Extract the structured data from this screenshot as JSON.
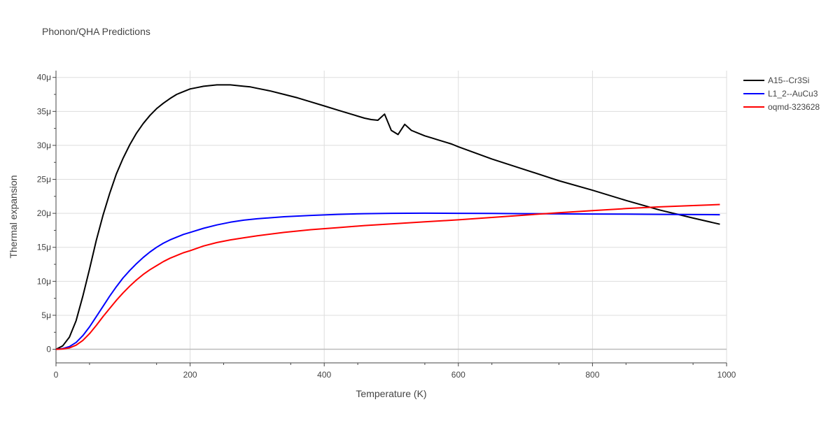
{
  "chart_data": {
    "type": "line",
    "title": "Phonon/QHA Predictions",
    "xlabel": "Temperature (K)",
    "ylabel": "Thermal expansion",
    "xlim": [
      0,
      1000
    ],
    "ylim": [
      -2,
      41
    ],
    "x_ticks": [
      0,
      200,
      400,
      600,
      800,
      1000
    ],
    "x_tick_labels": [
      "0",
      "200",
      "400",
      "600",
      "800",
      "1000"
    ],
    "y_ticks": [
      0,
      5,
      10,
      15,
      20,
      25,
      30,
      35,
      40
    ],
    "y_tick_labels": [
      "0",
      "5μ",
      "10μ",
      "15μ",
      "20μ",
      "25μ",
      "30μ",
      "35μ",
      "40μ"
    ],
    "grid": true,
    "legend_position": "top-right",
    "series": [
      {
        "name": "A15--Cr3Si",
        "color": "#000000",
        "x": [
          0,
          10,
          20,
          30,
          40,
          50,
          60,
          70,
          80,
          90,
          100,
          110,
          120,
          130,
          140,
          150,
          160,
          170,
          180,
          190,
          200,
          210,
          220,
          230,
          240,
          250,
          260,
          270,
          280,
          290,
          300,
          320,
          340,
          360,
          380,
          400,
          420,
          440,
          460,
          470,
          480,
          490,
          500,
          510,
          520,
          530,
          540,
          550,
          560,
          570,
          580,
          590,
          600,
          650,
          700,
          750,
          800,
          850,
          900,
          950,
          990
        ],
        "values": [
          0,
          0.5,
          1.8,
          4.2,
          7.8,
          11.8,
          16.0,
          19.7,
          22.9,
          25.8,
          28.1,
          30.1,
          31.8,
          33.2,
          34.4,
          35.4,
          36.2,
          36.9,
          37.5,
          37.9,
          38.3,
          38.5,
          38.7,
          38.8,
          38.9,
          38.9,
          38.9,
          38.8,
          38.7,
          38.6,
          38.4,
          38.0,
          37.5,
          37.0,
          36.4,
          35.8,
          35.2,
          34.6,
          34.0,
          33.8,
          33.7,
          34.6,
          32.2,
          31.6,
          33.1,
          32.2,
          31.8,
          31.4,
          31.1,
          30.8,
          30.5,
          30.2,
          29.8,
          28.0,
          26.4,
          24.8,
          23.4,
          21.9,
          20.5,
          19.3,
          18.4
        ]
      },
      {
        "name": "L1_2--AuCu3",
        "color": "#0000ff",
        "x": [
          0,
          10,
          20,
          30,
          40,
          50,
          60,
          70,
          80,
          90,
          100,
          110,
          120,
          130,
          140,
          150,
          160,
          170,
          180,
          190,
          200,
          220,
          240,
          260,
          280,
          300,
          340,
          380,
          420,
          460,
          500,
          550,
          600,
          650,
          700,
          750,
          800,
          850,
          900,
          950,
          990
        ],
        "values": [
          0,
          0.1,
          0.4,
          1.0,
          2.0,
          3.3,
          4.8,
          6.3,
          7.8,
          9.2,
          10.5,
          11.6,
          12.6,
          13.5,
          14.3,
          15.0,
          15.6,
          16.1,
          16.5,
          16.9,
          17.2,
          17.8,
          18.3,
          18.7,
          19.0,
          19.2,
          19.5,
          19.7,
          19.85,
          19.95,
          20.0,
          20.02,
          20.0,
          19.98,
          19.95,
          19.92,
          19.9,
          19.88,
          19.85,
          19.82,
          19.8
        ]
      },
      {
        "name": "oqmd-323628",
        "color": "#ff0000",
        "x": [
          0,
          10,
          20,
          30,
          40,
          50,
          60,
          70,
          80,
          90,
          100,
          110,
          120,
          130,
          140,
          150,
          160,
          170,
          180,
          190,
          200,
          220,
          240,
          260,
          280,
          300,
          340,
          380,
          420,
          460,
          500,
          550,
          600,
          650,
          700,
          750,
          800,
          850,
          900,
          950,
          990
        ],
        "values": [
          0,
          0.05,
          0.2,
          0.6,
          1.3,
          2.3,
          3.5,
          4.8,
          6.0,
          7.2,
          8.3,
          9.3,
          10.2,
          11.0,
          11.7,
          12.3,
          12.9,
          13.4,
          13.8,
          14.2,
          14.5,
          15.2,
          15.7,
          16.1,
          16.4,
          16.7,
          17.2,
          17.6,
          17.9,
          18.2,
          18.45,
          18.75,
          19.05,
          19.4,
          19.75,
          20.1,
          20.4,
          20.7,
          20.95,
          21.15,
          21.3
        ]
      }
    ]
  }
}
